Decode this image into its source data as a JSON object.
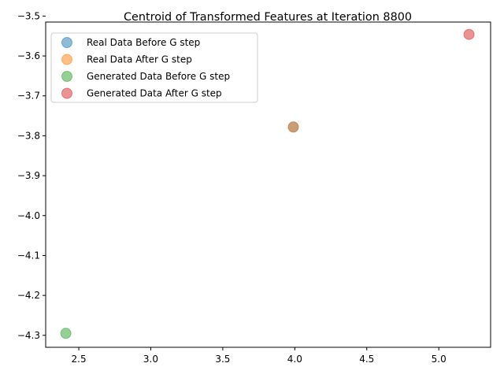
{
  "chart_data": {
    "type": "scatter",
    "title": "Centroid of Transformed Features at Iteration 8800",
    "xlabel": "",
    "ylabel": "",
    "xlim": [
      2.27,
      5.36
    ],
    "ylim": [
      -4.33,
      -3.515
    ],
    "xticks": [
      2.5,
      3.0,
      3.5,
      4.0,
      4.5,
      5.0
    ],
    "yticks": [
      -3.5,
      -3.6,
      -3.7,
      -3.8,
      -3.9,
      -4.0,
      -4.1,
      -4.2,
      -4.3
    ],
    "xtick_labels": [
      "2.5",
      "3.0",
      "3.5",
      "4.0",
      "4.5",
      "5.0"
    ],
    "ytick_labels": [
      "−3.5",
      "−3.6",
      "−3.7",
      "−3.8",
      "−3.9",
      "−4.0",
      "−4.1",
      "−4.2",
      "−4.3"
    ],
    "grid": false,
    "legend_position": "upper-left",
    "series": [
      {
        "name": "Real Data Before G step",
        "color": "#1f77b4",
        "x": [
          3.99
        ],
        "y": [
          -3.778
        ]
      },
      {
        "name": "Real Data After G step",
        "color": "#ff7f0e",
        "x": [
          3.99
        ],
        "y": [
          -3.778
        ]
      },
      {
        "name": "Generated Data Before G step",
        "color": "#2ca02c",
        "x": [
          2.41
        ],
        "y": [
          -4.295
        ]
      },
      {
        "name": "Generated Data After G step",
        "color": "#d62728",
        "x": [
          5.21
        ],
        "y": [
          -3.546
        ]
      }
    ]
  }
}
